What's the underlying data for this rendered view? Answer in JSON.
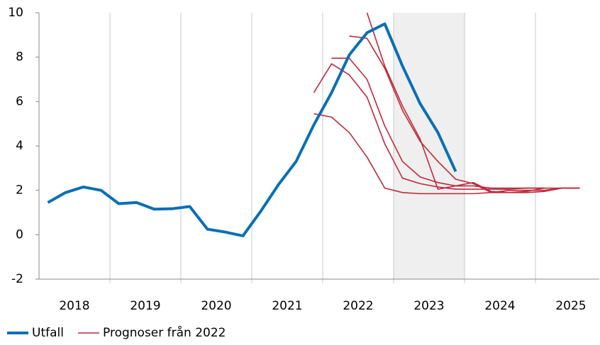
{
  "chart_data": {
    "type": "line",
    "xlim": [
      2018,
      2025.9
    ],
    "ylim": [
      -2,
      10
    ],
    "yticks": [
      -2,
      0,
      2,
      4,
      6,
      8,
      10
    ],
    "xticks": [
      {
        "value": 2018.5,
        "label": "2018"
      },
      {
        "value": 2019.5,
        "label": "2019"
      },
      {
        "value": 2020.5,
        "label": "2020"
      },
      {
        "value": 2021.5,
        "label": "2021"
      },
      {
        "value": 2022.5,
        "label": "2022"
      },
      {
        "value": 2023.5,
        "label": "2023"
      },
      {
        "value": 2024.5,
        "label": "2024"
      },
      {
        "value": 2025.5,
        "label": "2025"
      }
    ],
    "xgrid": [
      2019,
      2020,
      2021,
      2022,
      2023,
      2024,
      2025
    ],
    "shade": [
      2023,
      2024
    ],
    "series": [
      {
        "name": "Utfall",
        "color": "#0a6fb5",
        "x": [
          2018.125,
          2018.375,
          2018.625,
          2018.875,
          2019.125,
          2019.375,
          2019.625,
          2019.875,
          2020.125,
          2020.375,
          2020.625,
          2020.875,
          2021.125,
          2021.375,
          2021.625,
          2021.875,
          2022.125,
          2022.375,
          2022.625,
          2022.875,
          2023.125,
          2023.375,
          2023.625,
          2023.875
        ],
        "values": [
          1.45,
          1.9,
          2.15,
          2.0,
          1.4,
          1.45,
          1.15,
          1.17,
          1.27,
          0.25,
          0.12,
          -0.05,
          1.05,
          2.25,
          3.3,
          4.95,
          6.4,
          8.1,
          9.1,
          9.5,
          7.6,
          5.9,
          4.6,
          2.85
        ]
      }
    ],
    "forecasts": {
      "name": "Prognoser från 2022",
      "color": "#c0283a",
      "lines": [
        {
          "x": [
            2021.875,
            2022.125,
            2022.375,
            2022.625,
            2022.875,
            2023.125,
            2023.375,
            2023.625,
            2023.875,
            2024.125,
            2024.375,
            2024.625,
            2024.875,
            2025.125
          ],
          "values": [
            5.45,
            5.3,
            4.6,
            3.5,
            2.1,
            1.9,
            1.85,
            1.85,
            1.85,
            1.85,
            1.9,
            1.9,
            1.95,
            2.1
          ]
        },
        {
          "x": [
            2021.875,
            2022.125,
            2022.375,
            2022.625,
            2022.875,
            2023.125,
            2023.375,
            2023.625,
            2023.875,
            2024.125,
            2024.375,
            2024.625,
            2024.875,
            2025.125
          ],
          "values": [
            6.4,
            7.7,
            7.2,
            6.2,
            4.1,
            2.55,
            2.3,
            2.15,
            2.05,
            2.05,
            2.05,
            2.05,
            2.1,
            2.1
          ]
        },
        {
          "x": [
            2022.125,
            2022.375,
            2022.625,
            2022.875,
            2023.125,
            2023.375,
            2023.625,
            2023.875,
            2024.125,
            2024.375,
            2024.625,
            2024.875,
            2025.125,
            2025.375,
            2025.625
          ],
          "values": [
            7.95,
            7.95,
            7.0,
            4.9,
            3.3,
            2.6,
            2.35,
            2.2,
            2.2,
            2.1,
            2.1,
            2.1,
            2.1,
            2.1,
            2.1
          ]
        },
        {
          "x": [
            2022.375,
            2022.625,
            2022.875,
            2023.125,
            2023.375,
            2023.625,
            2023.875,
            2024.125,
            2024.375,
            2024.625,
            2024.875,
            2025.125,
            2025.375,
            2025.625
          ],
          "values": [
            8.95,
            8.85,
            7.5,
            5.6,
            4.2,
            3.3,
            2.5,
            2.3,
            1.9,
            2.0,
            2.0,
            2.0,
            2.1,
            2.1
          ]
        },
        {
          "x": [
            2022.625,
            2022.875,
            2023.125,
            2023.375,
            2023.625,
            2023.875,
            2024.125,
            2024.375,
            2024.625,
            2024.875,
            2025.125,
            2025.375,
            2025.625
          ],
          "values": [
            10.0,
            7.6,
            5.8,
            4.3,
            2.05,
            2.2,
            2.35,
            1.95,
            1.9,
            1.9,
            1.95,
            2.1,
            2.1
          ]
        }
      ]
    }
  }
}
